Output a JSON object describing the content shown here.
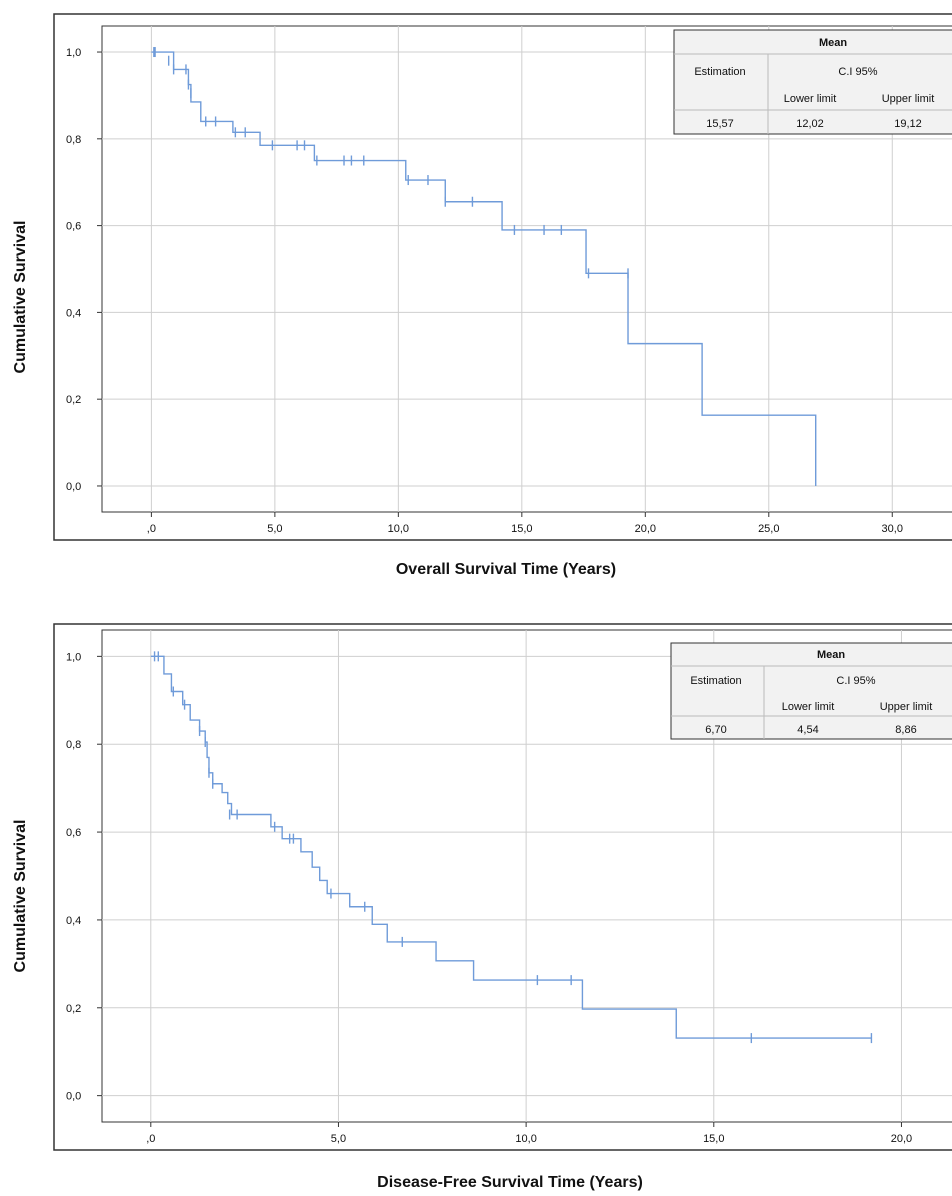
{
  "chart_data": [
    {
      "type": "line",
      "subtype": "kaplan-meier",
      "xlabel": "Overall Survival Time (Years)",
      "ylabel": "Cumulative Survival",
      "xlim": [
        -2.0,
        32.5
      ],
      "ylim": [
        -0.06,
        1.06
      ],
      "xticks": [
        0,
        5,
        10,
        15,
        20,
        25,
        30
      ],
      "xtick_labels": [
        ",0",
        "5,0",
        "10,0",
        "15,0",
        "20,0",
        "25,0",
        "30,0"
      ],
      "yticks": [
        0,
        0.2,
        0.4,
        0.6,
        0.8,
        1.0
      ],
      "ytick_labels": [
        "0,0",
        "0,2",
        "0,4",
        "0,6",
        "0,8",
        "1,0"
      ],
      "grid": true,
      "line_color": "#6f9bd9",
      "steps": [
        [
          0,
          1.0
        ],
        [
          0.9,
          0.96
        ],
        [
          1.5,
          0.925
        ],
        [
          1.6,
          0.885
        ],
        [
          2.0,
          0.84
        ],
        [
          3.3,
          0.815
        ],
        [
          4.4,
          0.785
        ],
        [
          6.6,
          0.75
        ],
        [
          10.3,
          0.705
        ],
        [
          11.9,
          0.655
        ],
        [
          14.2,
          0.59
        ],
        [
          17.6,
          0.49
        ],
        [
          19.3,
          0.328
        ],
        [
          22.3,
          0.163
        ],
        [
          26.9,
          0.0
        ]
      ],
      "end_x": 26.9,
      "censored": [
        [
          0.1,
          1.0
        ],
        [
          0.15,
          1.0
        ],
        [
          0.7,
          0.98
        ],
        [
          0.9,
          0.96
        ],
        [
          1.4,
          0.96
        ],
        [
          1.5,
          0.925
        ],
        [
          1.6,
          0.905
        ],
        [
          2.2,
          0.84
        ],
        [
          2.6,
          0.84
        ],
        [
          3.4,
          0.815
        ],
        [
          3.8,
          0.815
        ],
        [
          4.9,
          0.785
        ],
        [
          5.9,
          0.785
        ],
        [
          6.2,
          0.785
        ],
        [
          6.7,
          0.75
        ],
        [
          7.8,
          0.75
        ],
        [
          8.1,
          0.75
        ],
        [
          8.6,
          0.75
        ],
        [
          10.4,
          0.705
        ],
        [
          11.2,
          0.705
        ],
        [
          11.9,
          0.655
        ],
        [
          13.0,
          0.655
        ],
        [
          14.7,
          0.59
        ],
        [
          15.9,
          0.59
        ],
        [
          16.6,
          0.59
        ],
        [
          17.7,
          0.49
        ],
        [
          19.3,
          0.49
        ]
      ],
      "legend": {
        "title": "Mean",
        "col_estimation": "Estimation",
        "col_ci": "C.I 95%",
        "col_lower": "Lower limit",
        "col_upper": "Upper limit",
        "estimation": "15,57",
        "lower": "12,02",
        "upper": "19,12",
        "placement": "top-right"
      }
    },
    {
      "type": "line",
      "subtype": "kaplan-meier",
      "xlabel": "Disease-Free Survival Time (Years)",
      "ylabel": "Cumulative Survival",
      "xlim": [
        -1.3,
        21.4
      ],
      "ylim": [
        -0.06,
        1.06
      ],
      "xticks": [
        0,
        5,
        10,
        15,
        20
      ],
      "xtick_labels": [
        ",0",
        "5,0",
        "10,0",
        "15,0",
        "20,0"
      ],
      "yticks": [
        0,
        0.2,
        0.4,
        0.6,
        0.8,
        1.0
      ],
      "ytick_labels": [
        "0,0",
        "0,2",
        "0,4",
        "0,6",
        "0,8",
        "1,0"
      ],
      "grid": true,
      "line_color": "#6f9bd9",
      "steps": [
        [
          0,
          1.0
        ],
        [
          0.35,
          0.96
        ],
        [
          0.55,
          0.92
        ],
        [
          0.85,
          0.89
        ],
        [
          1.05,
          0.855
        ],
        [
          1.3,
          0.83
        ],
        [
          1.45,
          0.805
        ],
        [
          1.5,
          0.77
        ],
        [
          1.55,
          0.735
        ],
        [
          1.65,
          0.71
        ],
        [
          1.9,
          0.69
        ],
        [
          2.05,
          0.665
        ],
        [
          2.15,
          0.64
        ],
        [
          3.2,
          0.612
        ],
        [
          3.5,
          0.585
        ],
        [
          4.0,
          0.555
        ],
        [
          4.3,
          0.52
        ],
        [
          4.5,
          0.49
        ],
        [
          4.7,
          0.46
        ],
        [
          5.3,
          0.43
        ],
        [
          5.9,
          0.39
        ],
        [
          6.3,
          0.35
        ],
        [
          7.6,
          0.307
        ],
        [
          8.6,
          0.263
        ],
        [
          11.5,
          0.197
        ],
        [
          14.0,
          0.131
        ]
      ],
      "end_x": 19.2,
      "censored": [
        [
          0.1,
          1.0
        ],
        [
          0.2,
          1.0
        ],
        [
          0.6,
          0.92
        ],
        [
          0.9,
          0.89
        ],
        [
          1.3,
          0.83
        ],
        [
          1.45,
          0.805
        ],
        [
          1.55,
          0.735
        ],
        [
          1.65,
          0.71
        ],
        [
          2.1,
          0.64
        ],
        [
          2.3,
          0.64
        ],
        [
          3.3,
          0.612
        ],
        [
          3.7,
          0.585
        ],
        [
          3.8,
          0.585
        ],
        [
          4.8,
          0.46
        ],
        [
          5.7,
          0.43
        ],
        [
          6.7,
          0.35
        ],
        [
          10.3,
          0.263
        ],
        [
          11.2,
          0.263
        ],
        [
          16.0,
          0.131
        ],
        [
          19.2,
          0.131
        ]
      ],
      "legend": {
        "title": "Mean",
        "col_estimation": "Estimation",
        "col_ci": "C.I 95%",
        "col_lower": "Lower limit",
        "col_upper": "Upper limit",
        "estimation": "6,70",
        "lower": "4,54",
        "upper": "8,86",
        "placement": "top-right"
      }
    }
  ]
}
